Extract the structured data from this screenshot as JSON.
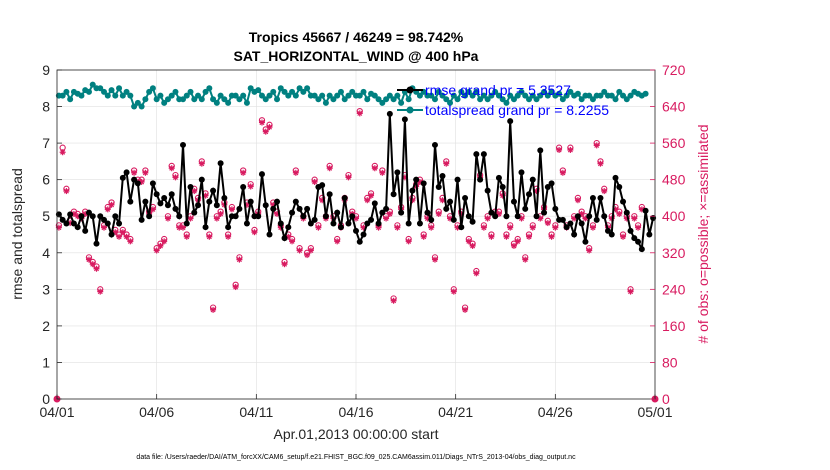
{
  "chart_data": {
    "type": "line",
    "title_line1": "Tropics 45667 / 46249 = 98.742%",
    "title_line2": "SAT_HORIZONTAL_WIND @ 400 hPa",
    "xlabel": "Apr.01,2013 00:00:00 start",
    "ylabel_left": "rmse and totalspread",
    "ylabel_right": "# of obs: o=possible; ×=assimilated",
    "footer": "data file: /Users/raeder/DAI/ATM_forcXX/CAM6_setup/f.e21.FHIST_BGC.f09_025.CAM6assim.011/Diags_NTrS_2013-04/obs_diag_output.nc",
    "xlim": [
      0,
      30
    ],
    "ylim_left": [
      0,
      9
    ],
    "ylim_right": [
      0,
      720
    ],
    "x_ticks": [
      0,
      5,
      10,
      15,
      20,
      25,
      30
    ],
    "x_tick_labels": [
      "04/01",
      "04/06",
      "04/11",
      "04/16",
      "04/21",
      "04/26",
      "05/01"
    ],
    "y_left_ticks": [
      "0",
      "1",
      "2",
      "3",
      "4",
      "5",
      "6",
      "7",
      "8",
      "9"
    ],
    "y_right_ticks": [
      "0",
      "80",
      "160",
      "240",
      "320",
      "400",
      "480",
      "560",
      "640",
      "720"
    ],
    "legend": [
      {
        "name": "rmse grand pr = 5.3527",
        "color": "#000000"
      },
      {
        "name": "totalspread grand pr = 8.2255",
        "color": "#008080"
      }
    ],
    "colors": {
      "rmse": "#000000",
      "spread": "#008080",
      "obs": "#d81b60",
      "legend_text": "#0000ff"
    },
    "series": [
      {
        "name": "rmse",
        "values": [
          5.05,
          4.9,
          4.8,
          5.05,
          4.8,
          4.7,
          5.0,
          4.6,
          5.1,
          5.0,
          4.25,
          5.0,
          4.9,
          4.8,
          4.5,
          5.0,
          4.8,
          6.05,
          6.2,
          5.4,
          6.0,
          5.9,
          4.9,
          5.4,
          5.0,
          5.9,
          5.6,
          5.35,
          5.5,
          5.3,
          5.6,
          5.2,
          5.0,
          6.95,
          4.8,
          5.8,
          5.1,
          5.3,
          6.0,
          4.7,
          5.4,
          5.7,
          5.3,
          6.45,
          5.5,
          4.7,
          5.0,
          5.0,
          5.2,
          5.8,
          4.8,
          5.4,
          5.0,
          5.0,
          6.15,
          5.3,
          4.5,
          5.2,
          5.4,
          4.8,
          4.4,
          4.7,
          5.1,
          5.4,
          5.2,
          5.0,
          5.2,
          4.8,
          4.9,
          5.8,
          5.85,
          5.0,
          5.6,
          4.8,
          5.1,
          4.7,
          5.5,
          4.8,
          5.0,
          4.6,
          4.3,
          4.5,
          4.8,
          4.9,
          5.35,
          4.8,
          5.1,
          5.2,
          7.8,
          5.6,
          6.2,
          5.1,
          7.65,
          4.8,
          5.7,
          6.0,
          4.8,
          5.9,
          5.1,
          4.9,
          6.95,
          5.8,
          6.1,
          5.2,
          5.4,
          4.9,
          6.0,
          4.7,
          5.5,
          5.0,
          4.85,
          6.7,
          6.0,
          6.7,
          5.7,
          5.1,
          5.0,
          6.05,
          5.8,
          5.0,
          7.6,
          5.4,
          5.0,
          6.2,
          5.2,
          5.6,
          6.0,
          5.0,
          6.8,
          5.1,
          5.8,
          5.9,
          5.2,
          4.9,
          4.9,
          4.7,
          4.8,
          4.5,
          5.0,
          4.8,
          4.3,
          5.0,
          5.5,
          4.9,
          5.5,
          5.0,
          4.6,
          4.5,
          6.05,
          5.8,
          5.4,
          5.1,
          4.6,
          4.4,
          4.3,
          4.1,
          5.15,
          4.5,
          4.95
        ]
      },
      {
        "name": "totalspread",
        "values": [
          8.3,
          8.3,
          8.4,
          8.2,
          8.4,
          8.35,
          8.3,
          8.45,
          8.4,
          8.6,
          8.5,
          8.5,
          8.4,
          8.3,
          8.45,
          8.3,
          8.5,
          8.3,
          8.4,
          8.3,
          8.0,
          8.1,
          8.0,
          8.2,
          8.4,
          8.5,
          8.2,
          8.3,
          8.1,
          8.2,
          8.3,
          8.4,
          8.2,
          8.2,
          8.3,
          8.4,
          8.2,
          8.3,
          8.2,
          8.4,
          8.5,
          8.2,
          8.1,
          8.3,
          8.2,
          8.1,
          8.3,
          8.3,
          8.2,
          8.3,
          8.1,
          8.5,
          8.4,
          8.45,
          8.3,
          8.2,
          8.3,
          8.4,
          8.2,
          8.5,
          8.4,
          8.3,
          8.4,
          8.3,
          8.5,
          8.4,
          8.5,
          8.3,
          8.3,
          8.2,
          8.3,
          8.1,
          8.3,
          8.2,
          8.3,
          8.4,
          8.2,
          8.3,
          8.4,
          8.3,
          8.3,
          8.4,
          8.2,
          8.35,
          8.3,
          8.2,
          8.1,
          8.2,
          8.3,
          8.2,
          8.3,
          8.1,
          8.4,
          8.2,
          8.5,
          8.4,
          8.3,
          8.4,
          8.3,
          8.3,
          8.2,
          8.4,
          8.3,
          8.2,
          8.1,
          8.3,
          8.2,
          8.4,
          8.3,
          8.4,
          8.3,
          8.4,
          8.2,
          8.3,
          8.2,
          8.3,
          8.4,
          8.3,
          8.2,
          8.1,
          8.3,
          8.2,
          8.3,
          8.4,
          8.3,
          8.2,
          8.3,
          8.2,
          8.3,
          8.4,
          8.3,
          8.4,
          8.3,
          8.35,
          8.2,
          8.3,
          8.4,
          8.3,
          8.35,
          8.2,
          8.3,
          8.3,
          8.2,
          8.3,
          8.3,
          8.4,
          8.3,
          8.3,
          8.2,
          8.4,
          8.3,
          8.2,
          8.3,
          8.4,
          8.35,
          8.3,
          8.35
        ]
      },
      {
        "name": "obs_possible",
        "values": [
          380,
          550,
          460,
          390,
          410,
          405,
          400,
          410,
          310,
          300,
          290,
          240,
          380,
          420,
          430,
          370,
          360,
          370,
          360,
          350,
          500,
          480,
          480,
          500,
          410,
          420,
          330,
          340,
          350,
          400,
          510,
          490,
          380,
          380,
          360,
          400,
          460,
          440,
          520,
          450,
          360,
          200,
          400,
          410,
          430,
          360,
          420,
          250,
          310,
          500,
          430,
          470,
          370,
          410,
          610,
          590,
          600,
          430,
          410,
          380,
          300,
          360,
          350,
          500,
          330,
          400,
          320,
          330,
          480,
          380,
          440,
          400,
          510,
          400,
          350,
          380,
          440,
          490,
          410,
          400,
          630,
          380,
          440,
          450,
          510,
          380,
          500,
          400,
          410,
          220,
          380,
          420,
          490,
          350,
          440,
          470,
          480,
          360,
          400,
          380,
          310,
          410,
          440,
          520,
          400,
          240,
          380,
          410,
          200,
          350,
          340,
          280,
          490,
          380,
          400,
          360,
          410,
          410,
          450,
          360,
          380,
          340,
          350,
          400,
          310,
          360,
          380,
          460,
          400,
          420,
          390,
          360,
          380,
          550,
          500,
          380,
          550,
          400,
          440,
          410,
          400,
          330,
          380,
          560,
          520,
          460,
          380,
          400,
          420,
          410,
          360,
          400,
          240,
          400,
          380,
          420
        ]
      },
      {
        "name": "obs_assimilated",
        "values": [
          375,
          540,
          455,
          385,
          405,
          400,
          395,
          405,
          305,
          295,
          285,
          235,
          375,
          415,
          425,
          365,
          355,
          365,
          355,
          345,
          495,
          475,
          475,
          495,
          405,
          415,
          325,
          335,
          345,
          395,
          505,
          485,
          375,
          375,
          355,
          395,
          455,
          435,
          515,
          445,
          355,
          195,
          395,
          405,
          425,
          355,
          415,
          245,
          305,
          495,
          425,
          465,
          365,
          405,
          605,
          585,
          595,
          425,
          405,
          375,
          295,
          355,
          345,
          495,
          325,
          395,
          315,
          325,
          475,
          375,
          435,
          395,
          505,
          395,
          345,
          375,
          435,
          485,
          405,
          395,
          625,
          375,
          435,
          445,
          505,
          375,
          495,
          395,
          405,
          215,
          375,
          415,
          485,
          345,
          435,
          465,
          475,
          355,
          395,
          375,
          305,
          405,
          435,
          515,
          395,
          235,
          375,
          405,
          195,
          345,
          335,
          275,
          485,
          375,
          395,
          355,
          405,
          405,
          445,
          355,
          375,
          335,
          345,
          395,
          305,
          355,
          375,
          455,
          395,
          415,
          385,
          355,
          375,
          545,
          495,
          375,
          545,
          395,
          435,
          405,
          395,
          325,
          375,
          555,
          515,
          455,
          375,
          395,
          415,
          405,
          355,
          395,
          235,
          395,
          375,
          415
        ]
      }
    ]
  }
}
